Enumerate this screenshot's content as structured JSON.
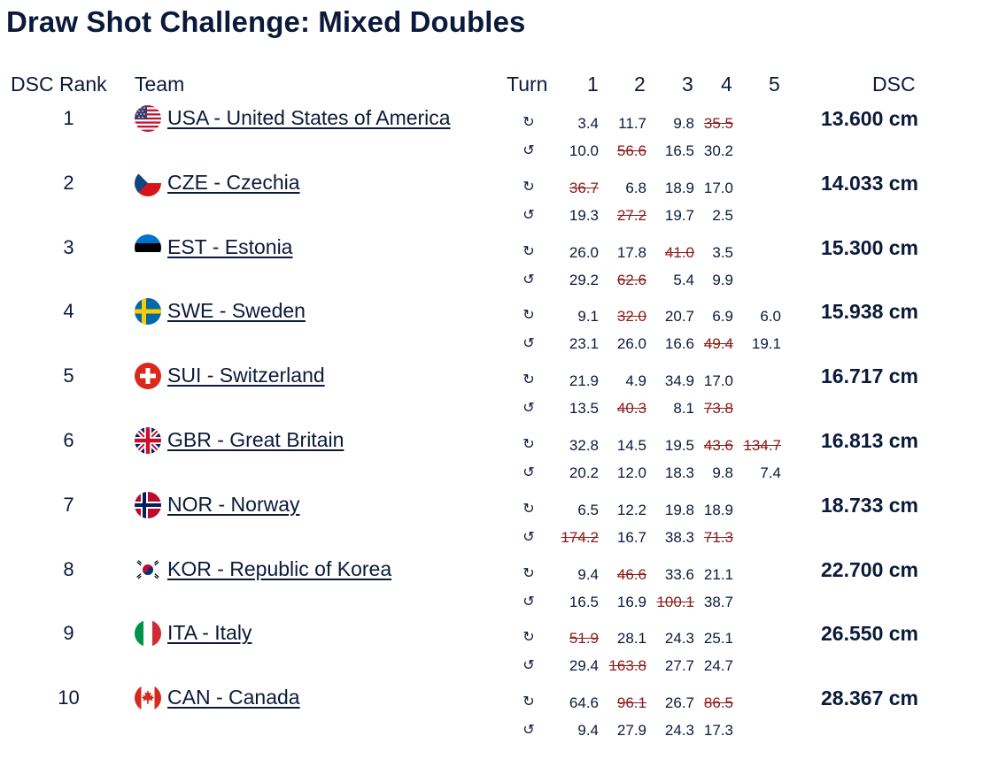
{
  "title": "Draw Shot Challenge: Mixed Doubles",
  "headers": {
    "rank": "DSC Rank",
    "team": "Team",
    "turn": "Turn",
    "c1": "1",
    "c2": "2",
    "c3": "3",
    "c4": "4",
    "c5": "5",
    "dsc": "DSC"
  },
  "turn_icons": {
    "clockwise": "↻",
    "counterclockwise": "↺"
  },
  "rows": [
    {
      "rank": "1",
      "team": "USA - United States of America",
      "flag": "usa",
      "dsc": "13.600 cm",
      "l1": [
        {
          "v": "3.4",
          "x": false
        },
        {
          "v": "11.7",
          "x": false
        },
        {
          "v": "9.8",
          "x": false
        },
        {
          "v": "35.5",
          "x": true
        },
        {
          "v": "",
          "x": false
        }
      ],
      "l2": [
        {
          "v": "10.0",
          "x": false
        },
        {
          "v": "56.6",
          "x": true
        },
        {
          "v": "16.5",
          "x": false
        },
        {
          "v": "30.2",
          "x": false
        },
        {
          "v": "",
          "x": false
        }
      ]
    },
    {
      "rank": "2",
      "team": "CZE - Czechia",
      "flag": "cze",
      "dsc": "14.033 cm",
      "l1": [
        {
          "v": "36.7",
          "x": true
        },
        {
          "v": "6.8",
          "x": false
        },
        {
          "v": "18.9",
          "x": false
        },
        {
          "v": "17.0",
          "x": false
        },
        {
          "v": "",
          "x": false
        }
      ],
      "l2": [
        {
          "v": "19.3",
          "x": false
        },
        {
          "v": "27.2",
          "x": true
        },
        {
          "v": "19.7",
          "x": false
        },
        {
          "v": "2.5",
          "x": false
        },
        {
          "v": "",
          "x": false
        }
      ]
    },
    {
      "rank": "3",
      "team": "EST - Estonia",
      "flag": "est",
      "dsc": "15.300 cm",
      "l1": [
        {
          "v": "26.0",
          "x": false
        },
        {
          "v": "17.8",
          "x": false
        },
        {
          "v": "41.0",
          "x": true
        },
        {
          "v": "3.5",
          "x": false
        },
        {
          "v": "",
          "x": false
        }
      ],
      "l2": [
        {
          "v": "29.2",
          "x": false
        },
        {
          "v": "62.6",
          "x": true
        },
        {
          "v": "5.4",
          "x": false
        },
        {
          "v": "9.9",
          "x": false
        },
        {
          "v": "",
          "x": false
        }
      ]
    },
    {
      "rank": "4",
      "team": "SWE - Sweden",
      "flag": "swe",
      "dsc": "15.938 cm",
      "l1": [
        {
          "v": "9.1",
          "x": false
        },
        {
          "v": "32.0",
          "x": true
        },
        {
          "v": "20.7",
          "x": false
        },
        {
          "v": "6.9",
          "x": false
        },
        {
          "v": "6.0",
          "x": false
        }
      ],
      "l2": [
        {
          "v": "23.1",
          "x": false
        },
        {
          "v": "26.0",
          "x": false
        },
        {
          "v": "16.6",
          "x": false
        },
        {
          "v": "49.4",
          "x": true
        },
        {
          "v": "19.1",
          "x": false
        }
      ]
    },
    {
      "rank": "5",
      "team": "SUI - Switzerland",
      "flag": "sui",
      "dsc": "16.717 cm",
      "l1": [
        {
          "v": "21.9",
          "x": false
        },
        {
          "v": "4.9",
          "x": false
        },
        {
          "v": "34.9",
          "x": false
        },
        {
          "v": "17.0",
          "x": false
        },
        {
          "v": "",
          "x": false
        }
      ],
      "l2": [
        {
          "v": "13.5",
          "x": false
        },
        {
          "v": "40.3",
          "x": true
        },
        {
          "v": "8.1",
          "x": false
        },
        {
          "v": "73.8",
          "x": true
        },
        {
          "v": "",
          "x": false
        }
      ]
    },
    {
      "rank": "6",
      "team": "GBR - Great Britain",
      "flag": "gbr",
      "dsc": "16.813 cm",
      "l1": [
        {
          "v": "32.8",
          "x": false
        },
        {
          "v": "14.5",
          "x": false
        },
        {
          "v": "19.5",
          "x": false
        },
        {
          "v": "43.6",
          "x": true
        },
        {
          "v": "134.7",
          "x": true
        }
      ],
      "l2": [
        {
          "v": "20.2",
          "x": false
        },
        {
          "v": "12.0",
          "x": false
        },
        {
          "v": "18.3",
          "x": false
        },
        {
          "v": "9.8",
          "x": false
        },
        {
          "v": "7.4",
          "x": false
        }
      ]
    },
    {
      "rank": "7",
      "team": "NOR - Norway",
      "flag": "nor",
      "dsc": "18.733 cm",
      "l1": [
        {
          "v": "6.5",
          "x": false
        },
        {
          "v": "12.2",
          "x": false
        },
        {
          "v": "19.8",
          "x": false
        },
        {
          "v": "18.9",
          "x": false
        },
        {
          "v": "",
          "x": false
        }
      ],
      "l2": [
        {
          "v": "174.2",
          "x": true
        },
        {
          "v": "16.7",
          "x": false
        },
        {
          "v": "38.3",
          "x": false
        },
        {
          "v": "71.3",
          "x": true
        },
        {
          "v": "",
          "x": false
        }
      ]
    },
    {
      "rank": "8",
      "team": "KOR - Republic of Korea",
      "flag": "kor",
      "dsc": "22.700 cm",
      "l1": [
        {
          "v": "9.4",
          "x": false
        },
        {
          "v": "46.6",
          "x": true
        },
        {
          "v": "33.6",
          "x": false
        },
        {
          "v": "21.1",
          "x": false
        },
        {
          "v": "",
          "x": false
        }
      ],
      "l2": [
        {
          "v": "16.5",
          "x": false
        },
        {
          "v": "16.9",
          "x": false
        },
        {
          "v": "100.1",
          "x": true
        },
        {
          "v": "38.7",
          "x": false
        },
        {
          "v": "",
          "x": false
        }
      ]
    },
    {
      "rank": "9",
      "team": "ITA - Italy",
      "flag": "ita",
      "dsc": "26.550 cm",
      "l1": [
        {
          "v": "51.9",
          "x": true
        },
        {
          "v": "28.1",
          "x": false
        },
        {
          "v": "24.3",
          "x": false
        },
        {
          "v": "25.1",
          "x": false
        },
        {
          "v": "",
          "x": false
        }
      ],
      "l2": [
        {
          "v": "29.4",
          "x": false
        },
        {
          "v": "163.8",
          "x": true
        },
        {
          "v": "27.7",
          "x": false
        },
        {
          "v": "24.7",
          "x": false
        },
        {
          "v": "",
          "x": false
        }
      ]
    },
    {
      "rank": "10",
      "team": "CAN - Canada",
      "flag": "can",
      "dsc": "28.367 cm",
      "l1": [
        {
          "v": "64.6",
          "x": false
        },
        {
          "v": "96.1",
          "x": true
        },
        {
          "v": "26.7",
          "x": false
        },
        {
          "v": "86.5",
          "x": true
        },
        {
          "v": "",
          "x": false
        }
      ],
      "l2": [
        {
          "v": "9.4",
          "x": false
        },
        {
          "v": "27.9",
          "x": false
        },
        {
          "v": "24.3",
          "x": false
        },
        {
          "v": "17.3",
          "x": false
        },
        {
          "v": "",
          "x": false
        }
      ]
    }
  ]
}
